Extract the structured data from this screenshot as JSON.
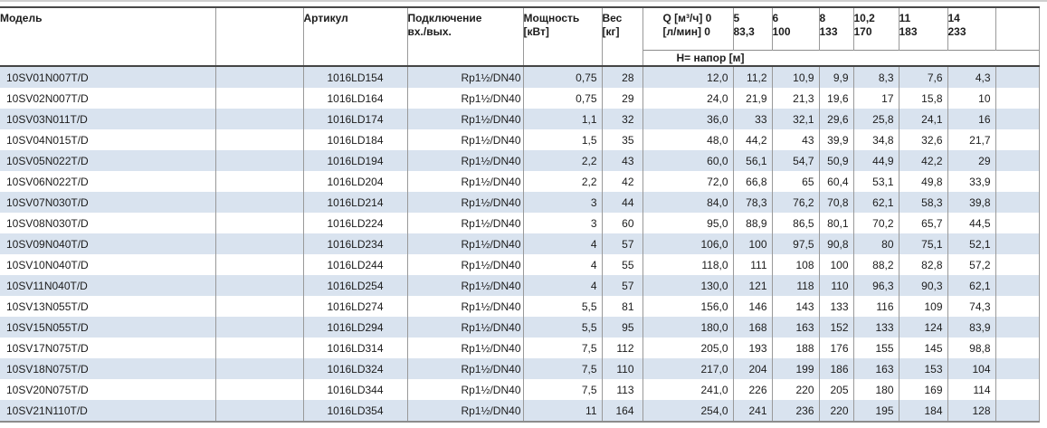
{
  "colors": {
    "stripe": "#d9e3ef",
    "grid": "#999999",
    "header_line": "#484848",
    "bottom_line": "#8c8c8c",
    "text": "#1c1c1c"
  },
  "table": {
    "headers": {
      "model": "Модель",
      "article": "Артикул",
      "connection_l1": "Подключение",
      "connection_l2": "вх./вых.",
      "power_l1": "Мощность",
      "power_l2": "[кВт]",
      "weight_l1": "Вес",
      "weight_l2": "[кг]",
      "q_l1": "Q [м³/ч] 0",
      "q_l2": "[л/мин] 0",
      "sub_header": "Н= напор [м]"
    },
    "flow_columns": [
      {
        "m3h": "5",
        "lmin": "83,3"
      },
      {
        "m3h": "6",
        "lmin": "100"
      },
      {
        "m3h": "8",
        "lmin": "133"
      },
      {
        "m3h": "10,2",
        "lmin": "170"
      },
      {
        "m3h": "11",
        "lmin": "183"
      },
      {
        "m3h": "14",
        "lmin": "233"
      }
    ],
    "rows": [
      {
        "model": "10SV01N007T/D",
        "article": "1016LD154",
        "connection": "Rp1½/DN40",
        "power": "0,75",
        "weight": "28",
        "h": [
          "12,0",
          "11,2",
          "10,9",
          "9,9",
          "8,3",
          "7,6",
          "4,3"
        ]
      },
      {
        "model": "10SV02N007T/D",
        "article": "1016LD164",
        "connection": "Rp1½/DN40",
        "power": "0,75",
        "weight": "29",
        "h": [
          "24,0",
          "21,9",
          "21,3",
          "19,6",
          "17",
          "15,8",
          "10"
        ]
      },
      {
        "model": "10SV03N011T/D",
        "article": "1016LD174",
        "connection": "Rp1½/DN40",
        "power": "1,1",
        "weight": "32",
        "h": [
          "36,0",
          "33",
          "32,1",
          "29,6",
          "25,8",
          "24,1",
          "16"
        ]
      },
      {
        "model": "10SV04N015T/D",
        "article": "1016LD184",
        "connection": "Rp1½/DN40",
        "power": "1,5",
        "weight": "35",
        "h": [
          "48,0",
          "44,2",
          "43",
          "39,9",
          "34,8",
          "32,6",
          "21,7"
        ]
      },
      {
        "model": "10SV05N022T/D",
        "article": "1016LD194",
        "connection": "Rp1½/DN40",
        "power": "2,2",
        "weight": "43",
        "h": [
          "60,0",
          "56,1",
          "54,7",
          "50,9",
          "44,9",
          "42,2",
          "29"
        ]
      },
      {
        "model": "10SV06N022T/D",
        "article": "1016LD204",
        "connection": "Rp1½/DN40",
        "power": "2,2",
        "weight": "42",
        "h": [
          "72,0",
          "66,8",
          "65",
          "60,4",
          "53,1",
          "49,8",
          "33,9"
        ]
      },
      {
        "model": "10SV07N030T/D",
        "article": "1016LD214",
        "connection": "Rp1½/DN40",
        "power": "3",
        "weight": "44",
        "h": [
          "84,0",
          "78,3",
          "76,2",
          "70,8",
          "62,1",
          "58,3",
          "39,8"
        ]
      },
      {
        "model": "10SV08N030T/D",
        "article": "1016LD224",
        "connection": "Rp1½/DN40",
        "power": "3",
        "weight": "60",
        "h": [
          "95,0",
          "88,9",
          "86,5",
          "80,1",
          "70,2",
          "65,7",
          "44,5"
        ]
      },
      {
        "model": "10SV09N040T/D",
        "article": "1016LD234",
        "connection": "Rp1½/DN40",
        "power": "4",
        "weight": "57",
        "h": [
          "106,0",
          "100",
          "97,5",
          "90,8",
          "80",
          "75,1",
          "52,1"
        ]
      },
      {
        "model": "10SV10N040T/D",
        "article": "1016LD244",
        "connection": "Rp1½/DN40",
        "power": "4",
        "weight": "55",
        "h": [
          "118,0",
          "111",
          "108",
          "100",
          "88,2",
          "82,8",
          "57,2"
        ]
      },
      {
        "model": "10SV11N040T/D",
        "article": "1016LD254",
        "connection": "Rp1½/DN40",
        "power": "4",
        "weight": "57",
        "h": [
          "130,0",
          "121",
          "118",
          "110",
          "96,3",
          "90,3",
          "62,1"
        ]
      },
      {
        "model": "10SV13N055T/D",
        "article": "1016LD274",
        "connection": "Rp1½/DN40",
        "power": "5,5",
        "weight": "81",
        "h": [
          "156,0",
          "146",
          "143",
          "133",
          "116",
          "109",
          "74,3"
        ]
      },
      {
        "model": "10SV15N055T/D",
        "article": "1016LD294",
        "connection": "Rp1½/DN40",
        "power": "5,5",
        "weight": "95",
        "h": [
          "180,0",
          "168",
          "163",
          "152",
          "133",
          "124",
          "83,9"
        ]
      },
      {
        "model": "10SV17N075T/D",
        "article": "1016LD314",
        "connection": "Rp1½/DN40",
        "power": "7,5",
        "weight": "112",
        "h": [
          "205,0",
          "193",
          "188",
          "176",
          "155",
          "145",
          "98,8"
        ]
      },
      {
        "model": "10SV18N075T/D",
        "article": "1016LD324",
        "connection": "Rp1½/DN40",
        "power": "7,5",
        "weight": "110",
        "h": [
          "217,0",
          "204",
          "199",
          "186",
          "163",
          "153",
          "104"
        ]
      },
      {
        "model": "10SV20N075T/D",
        "article": "1016LD344",
        "connection": "Rp1½/DN40",
        "power": "7,5",
        "weight": "113",
        "h": [
          "241,0",
          "226",
          "220",
          "205",
          "180",
          "169",
          "114"
        ]
      },
      {
        "model": "10SV21N110T/D",
        "article": "1016LD354",
        "connection": "Rp1½/DN40",
        "power": "11",
        "weight": "164",
        "h": [
          "254,0",
          "241",
          "236",
          "220",
          "195",
          "184",
          "128"
        ]
      }
    ]
  }
}
